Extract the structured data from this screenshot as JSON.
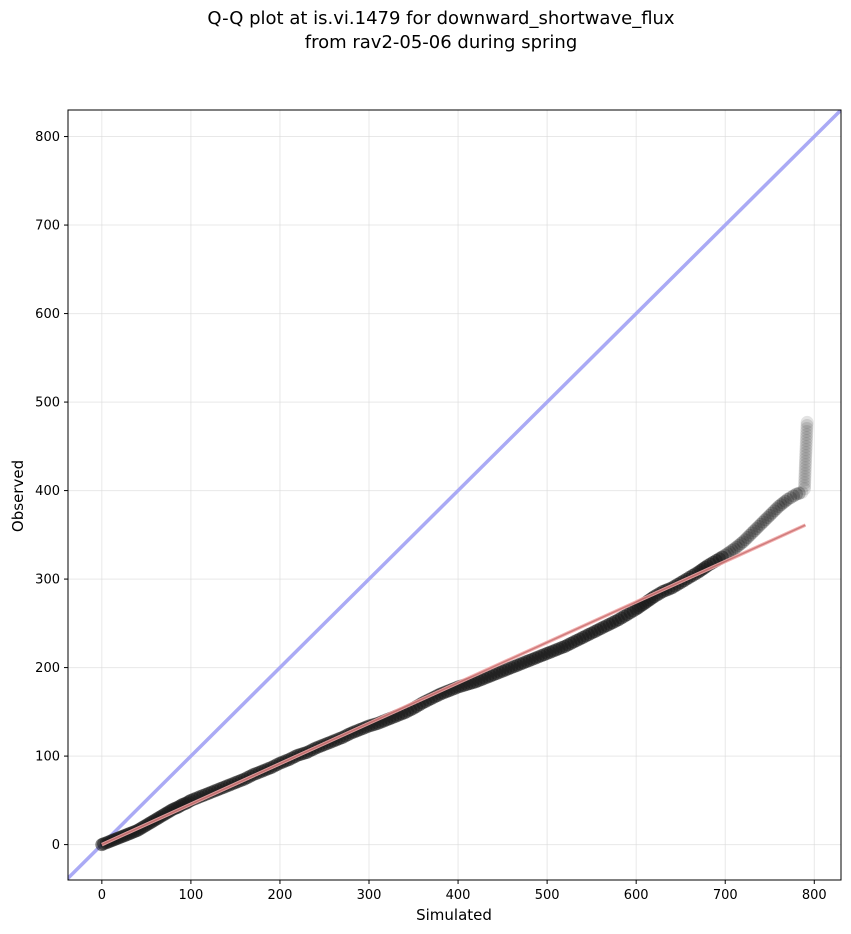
{
  "chart_data": {
    "type": "scatter",
    "title_lines": [
      "Q-Q plot at is.vi.1479 for downward_shortwave_flux",
      "from rav2-05-06 during spring"
    ],
    "xlabel": "Simulated",
    "ylabel": "Observed",
    "xlim": [
      -38,
      830
    ],
    "ylim": [
      -40,
      830
    ],
    "xticks": [
      0,
      100,
      200,
      300,
      400,
      500,
      600,
      700,
      800
    ],
    "yticks": [
      0,
      100,
      200,
      300,
      400,
      500,
      600,
      700,
      800
    ],
    "grid": true,
    "colors": {
      "points": "#1a1a1a",
      "identity_line": "#aaaaf5",
      "fit_line": "#f2a8a8",
      "fit_inner": "#8b1a1a"
    },
    "identity_line": {
      "from": [
        -40,
        -40
      ],
      "to": [
        830,
        830
      ]
    },
    "fit_line": {
      "from": [
        0,
        0
      ],
      "to": [
        790,
        361
      ]
    },
    "quantile_points": [
      [
        0,
        0
      ],
      [
        2,
        1
      ],
      [
        5,
        2
      ],
      [
        10,
        4
      ],
      [
        15,
        6
      ],
      [
        20,
        8
      ],
      [
        25,
        10
      ],
      [
        30,
        12
      ],
      [
        35,
        14
      ],
      [
        40,
        16
      ],
      [
        45,
        19
      ],
      [
        50,
        22
      ],
      [
        55,
        25
      ],
      [
        60,
        28
      ],
      [
        65,
        31
      ],
      [
        70,
        34
      ],
      [
        75,
        37
      ],
      [
        80,
        40
      ],
      [
        85,
        42
      ],
      [
        90,
        45
      ],
      [
        95,
        47
      ],
      [
        100,
        50
      ],
      [
        110,
        54
      ],
      [
        120,
        58
      ],
      [
        130,
        62
      ],
      [
        140,
        66
      ],
      [
        150,
        70
      ],
      [
        160,
        74
      ],
      [
        170,
        79
      ],
      [
        180,
        83
      ],
      [
        190,
        87
      ],
      [
        200,
        92
      ],
      [
        210,
        96
      ],
      [
        220,
        101
      ],
      [
        230,
        104
      ],
      [
        240,
        109
      ],
      [
        250,
        113
      ],
      [
        260,
        117
      ],
      [
        270,
        121
      ],
      [
        280,
        126
      ],
      [
        290,
        130
      ],
      [
        300,
        134
      ],
      [
        310,
        137
      ],
      [
        320,
        141
      ],
      [
        330,
        145
      ],
      [
        340,
        149
      ],
      [
        350,
        154
      ],
      [
        360,
        160
      ],
      [
        370,
        165
      ],
      [
        380,
        170
      ],
      [
        390,
        174
      ],
      [
        400,
        178
      ],
      [
        410,
        181
      ],
      [
        420,
        184
      ],
      [
        430,
        188
      ],
      [
        440,
        192
      ],
      [
        450,
        196
      ],
      [
        460,
        200
      ],
      [
        470,
        204
      ],
      [
        480,
        208
      ],
      [
        490,
        212
      ],
      [
        500,
        216
      ],
      [
        510,
        220
      ],
      [
        520,
        224
      ],
      [
        530,
        229
      ],
      [
        540,
        234
      ],
      [
        550,
        239
      ],
      [
        560,
        244
      ],
      [
        570,
        249
      ],
      [
        580,
        254
      ],
      [
        590,
        260
      ],
      [
        600,
        266
      ],
      [
        610,
        273
      ],
      [
        620,
        280
      ],
      [
        630,
        286
      ],
      [
        640,
        290
      ],
      [
        650,
        296
      ],
      [
        660,
        302
      ],
      [
        670,
        308
      ],
      [
        680,
        315
      ],
      [
        690,
        321
      ],
      [
        700,
        327
      ],
      [
        710,
        334
      ],
      [
        720,
        342
      ],
      [
        730,
        352
      ],
      [
        740,
        362
      ],
      [
        750,
        372
      ],
      [
        760,
        382
      ],
      [
        770,
        390
      ],
      [
        780,
        396
      ],
      [
        786,
        398
      ],
      [
        789,
        402
      ],
      [
        790,
        429
      ],
      [
        792,
        477
      ]
    ]
  }
}
